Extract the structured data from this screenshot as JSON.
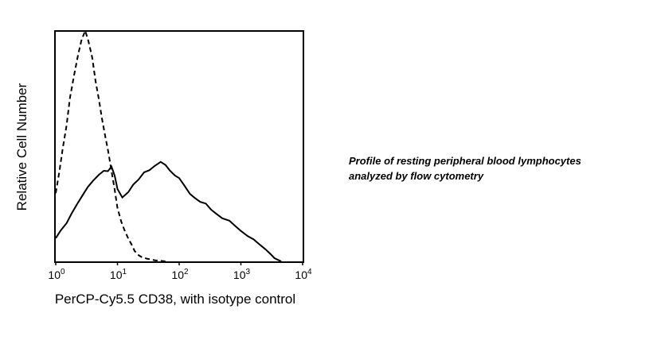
{
  "chart_data": {
    "type": "line",
    "title": "",
    "xlabel": "PerCP-Cy5.5 CD38, with isotype control",
    "ylabel": "Relative Cell Number",
    "x_scale": "log",
    "xlim": [
      1,
      10000
    ],
    "ylim": [
      0,
      100
    ],
    "grid": false,
    "legend": "none",
    "x_ticks": [
      {
        "value": 1,
        "base": "10",
        "exp": "0"
      },
      {
        "value": 10,
        "base": "10",
        "exp": "1"
      },
      {
        "value": 100,
        "base": "10",
        "exp": "2"
      },
      {
        "value": 1000,
        "base": "10",
        "exp": "3"
      },
      {
        "value": 10000,
        "base": "10",
        "exp": "4"
      }
    ],
    "series": [
      {
        "style": "dashed",
        "color": "#000000",
        "x": [
          1.0,
          1.15,
          1.3,
          1.5,
          1.7,
          2.0,
          2.3,
          2.6,
          3.0,
          3.4,
          3.9,
          4.4,
          5.0,
          5.6,
          6.3,
          7.1,
          8.0,
          9.0,
          10.0,
          11.5,
          13,
          15,
          17,
          19,
          22,
          25,
          30,
          40,
          50,
          60
        ],
        "y": [
          30,
          40,
          50,
          60,
          72,
          82,
          90,
          96,
          100,
          95,
          88,
          78,
          70,
          62,
          55,
          48,
          40,
          32,
          24,
          18,
          14,
          10,
          7,
          4,
          2,
          1,
          0.5,
          0,
          0,
          0
        ]
      },
      {
        "style": "solid",
        "color": "#000000",
        "x": [
          1.0,
          1.2,
          1.5,
          1.8,
          2.2,
          2.7,
          3.3,
          4.0,
          5.0,
          6.0,
          7.0,
          8.0,
          9.0,
          10,
          12,
          15,
          18,
          22,
          27,
          33,
          40,
          50,
          60,
          70,
          85,
          100,
          120,
          150,
          180,
          220,
          270,
          330,
          400,
          500,
          650,
          800,
          1000,
          1300,
          1600,
          2000,
          2500,
          3000,
          3500,
          4000,
          4500
        ],
        "y": [
          10,
          13,
          16,
          20,
          24,
          28,
          32,
          35,
          38,
          40,
          40,
          42,
          38,
          32,
          28,
          30,
          33,
          35,
          38,
          39,
          41,
          43,
          42,
          40,
          38,
          37,
          34,
          30,
          28,
          26,
          25,
          22,
          20,
          18,
          17,
          15,
          13,
          11,
          10,
          8,
          6,
          4,
          2,
          1,
          0
        ]
      }
    ]
  },
  "caption": {
    "line1": "Profile of resting peripheral blood lymphocytes",
    "line2": "analyzed by flow cytometry"
  }
}
